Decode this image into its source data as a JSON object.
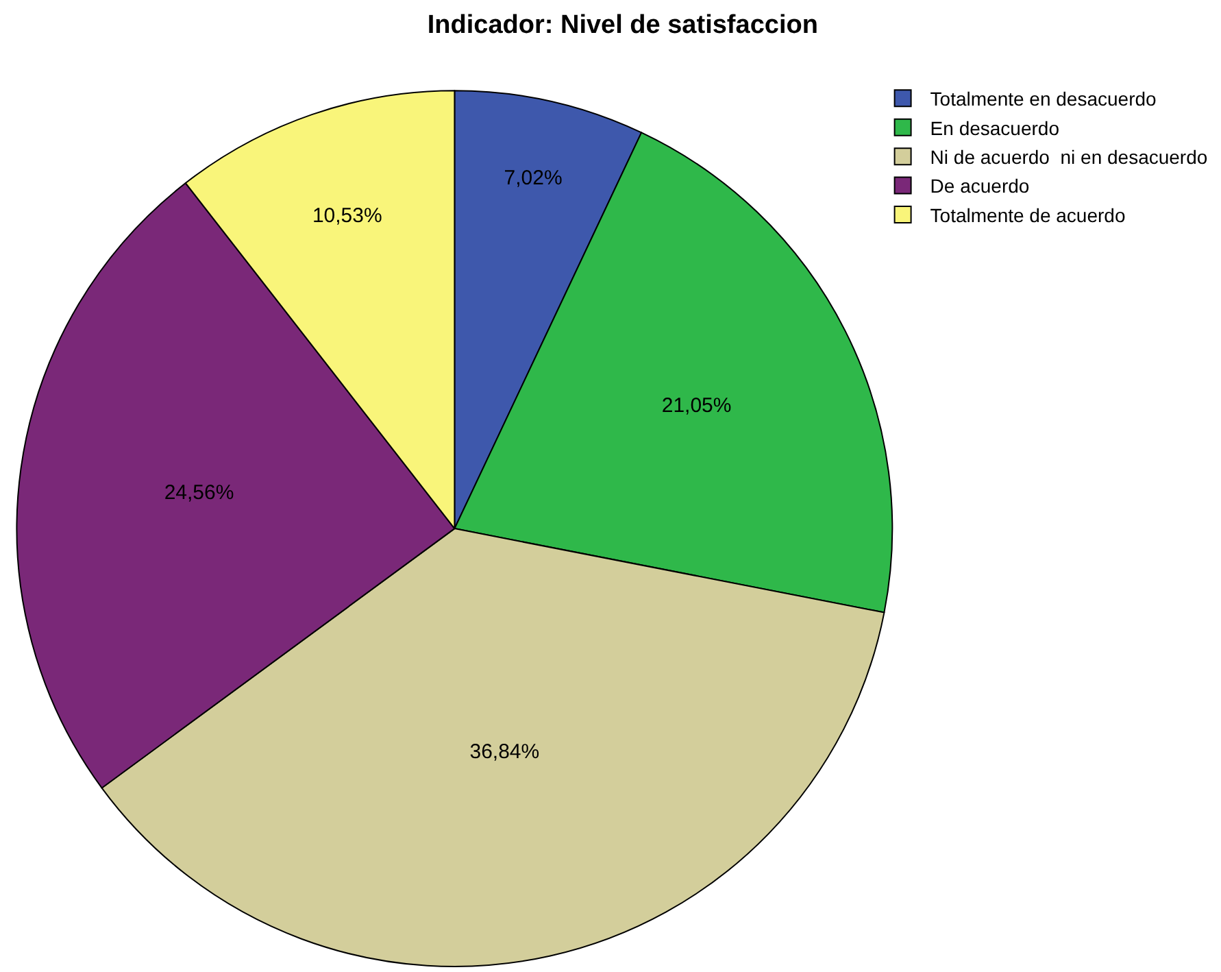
{
  "chart_data": {
    "type": "pie",
    "title": "Indicador: Nivel de satisfaccion",
    "categories": [
      "Totalmente en desacuerdo",
      "En desacuerdo",
      "Ni de acuerdo  ni en desacuerdo",
      "De acuerdo",
      "Totalmente de acuerdo"
    ],
    "values": [
      7.02,
      21.05,
      36.84,
      24.56,
      10.53
    ],
    "colors": [
      "#3e58ac",
      "#2fb84a",
      "#d3ce9b",
      "#7a2878",
      "#f9f57a"
    ],
    "value_labels": [
      "7,02%",
      "21,05%",
      "36,84%",
      "24,56%",
      "10,53%"
    ],
    "legend": "top right"
  }
}
